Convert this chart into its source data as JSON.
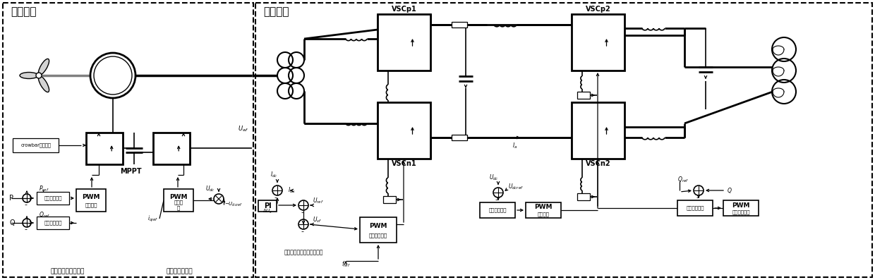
{
  "bg_color": "#ffffff",
  "section1_label": "风机部分",
  "section2_label": "柔直部分",
  "label_decoupled": "有无功功率解耦控制",
  "label_dc_ctrl": "定直流电压控制",
  "label_frt_ctrl": "故障穿越时的电压反馈控制",
  "label_ac_ctrl": "交流电压控制",
  "label_dc_ctrl2": "直流电压控制",
  "label_current_ctrl": "电流控制",
  "label_reactive_ctrl2": "无功功率控制",
  "label_active_ctrl": "有功功率控制",
  "label_reactive_ctrl": "无功功率控制",
  "label_current_ctrl1": "电流控制",
  "label_mppt": "MPPT",
  "label_crowbar": "crowbar保护电路",
  "label_pi": "PI",
  "label_pwm": "PWM"
}
